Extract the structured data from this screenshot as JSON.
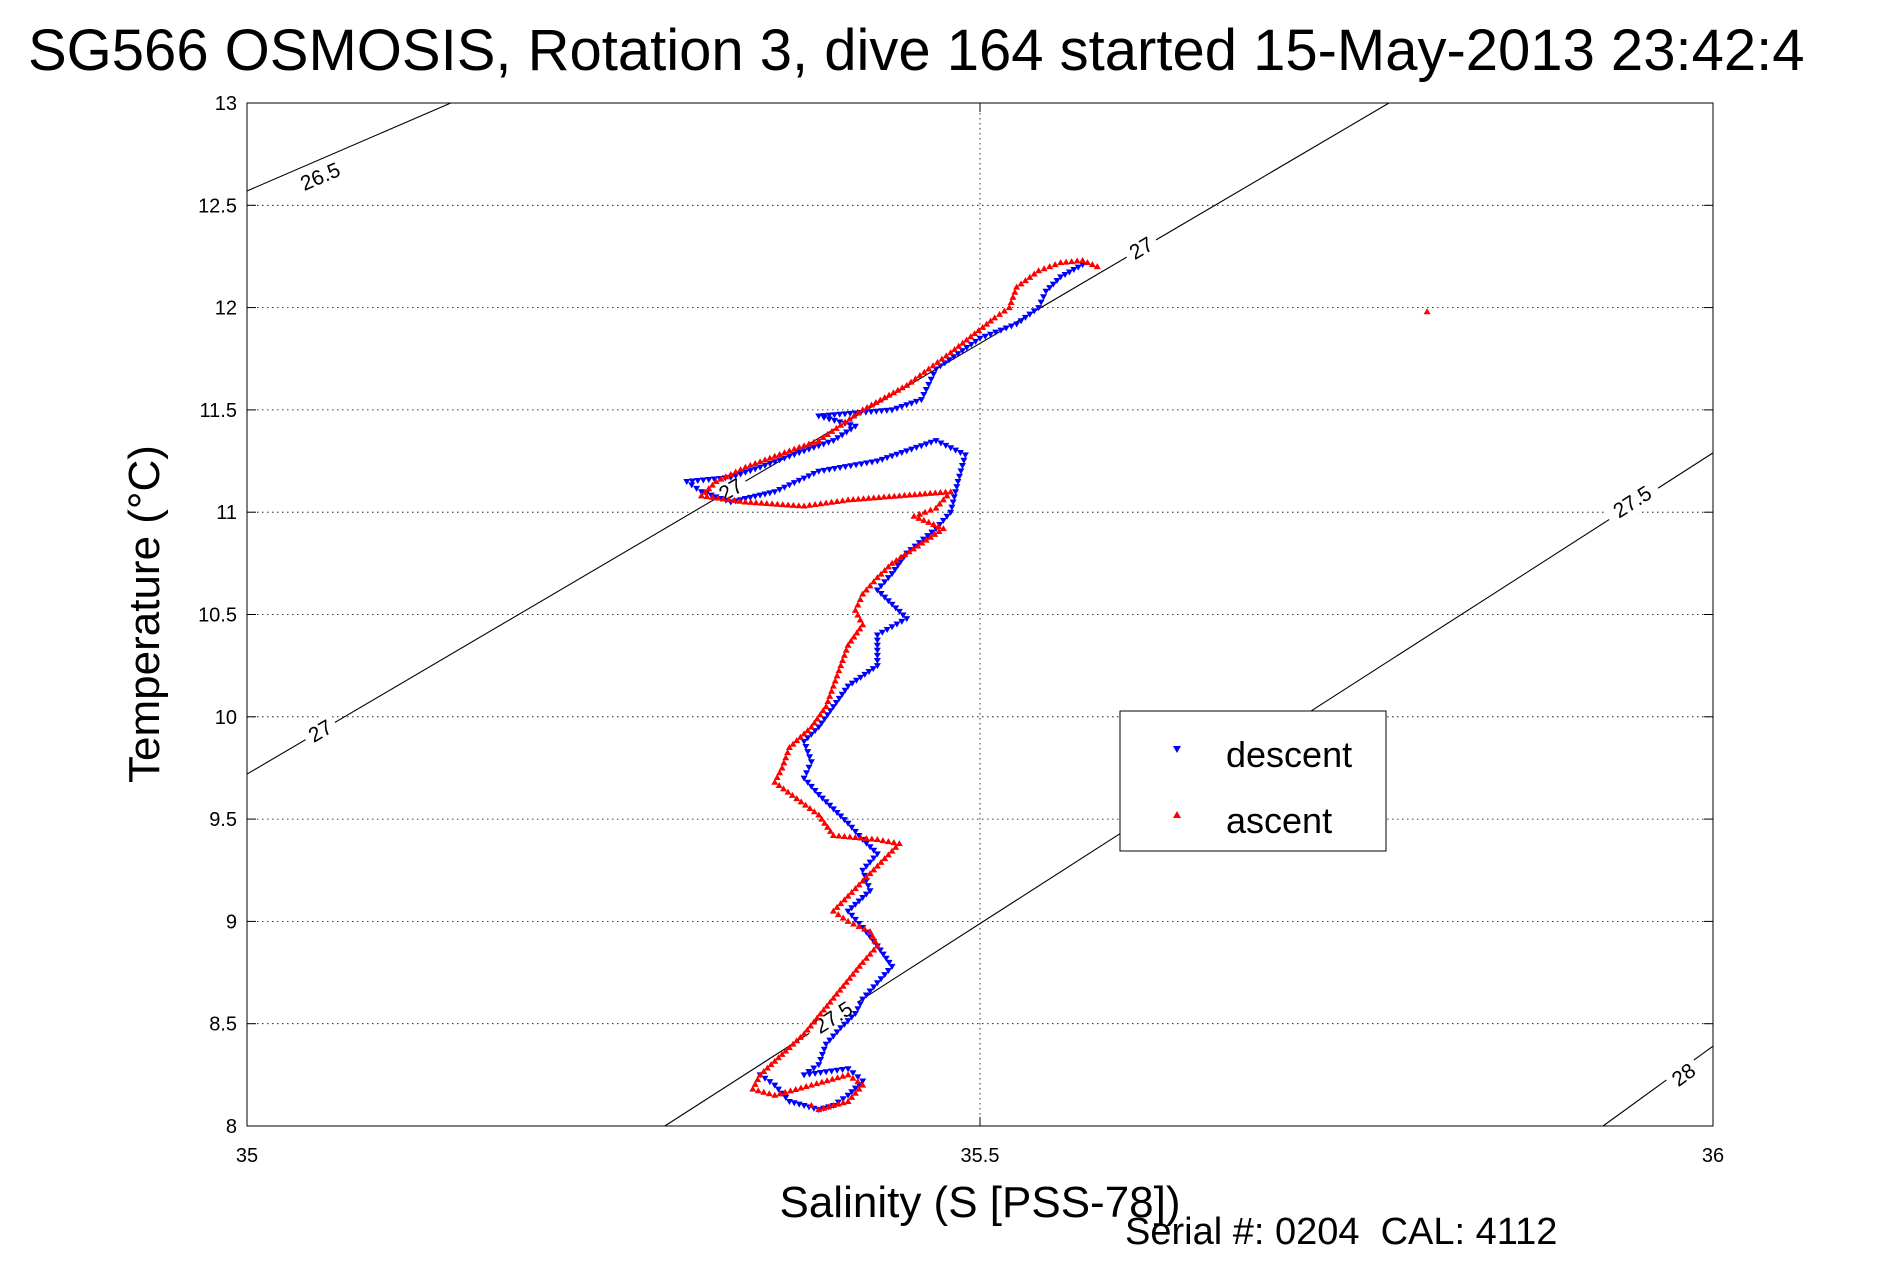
{
  "chart_data": {
    "type": "scatter",
    "title": "SG566 OSMOSIS, Rotation 3, dive 164 started 15-May-2013 23:42:4",
    "xlabel": "Salinity (S [PSS-78])",
    "ylabel": "Temperature (°C)",
    "xlim": [
      35,
      36
    ],
    "ylim": [
      8,
      13
    ],
    "xticks": [
      "35",
      "35.5",
      "36"
    ],
    "yticks": [
      "8",
      "8.5",
      "9",
      "9.5",
      "10",
      "10.5",
      "11",
      "11.5",
      "12",
      "12.5",
      "13"
    ],
    "grid": true,
    "legend_position": "center-right",
    "footer": "Serial #: 0204  CAL: 4112",
    "density_contours": [
      {
        "label": "26.5",
        "points": [
          [
            35.0,
            12.57
          ],
          [
            35.139,
            13.0
          ]
        ],
        "label_at": [
          35.05,
          12.64
        ]
      },
      {
        "label": "27",
        "points": [
          [
            35.0,
            9.72
          ],
          [
            35.779,
            13.0
          ]
        ],
        "label_at": [
          [
            35.05,
            9.93
          ],
          [
            35.33,
            11.11
          ],
          [
            35.61,
            12.29
          ]
        ]
      },
      {
        "label": "27.5",
        "points": [
          [
            35.285,
            8.0
          ],
          [
            36.0,
            11.29
          ]
        ],
        "label_at": [
          [
            35.4,
            8.53
          ],
          [
            35.945,
            11.05
          ]
        ]
      },
      {
        "label": "28",
        "points": [
          [
            35.925,
            8.0
          ],
          [
            36.0,
            8.39
          ]
        ],
        "label_at": [
          35.98,
          8.25
        ]
      }
    ],
    "series": [
      {
        "name": "descent",
        "color": "#0000ff",
        "marker": "triangle-down",
        "points": [
          [
            35.57,
            12.21
          ],
          [
            35.555,
            12.15
          ],
          [
            35.545,
            12.08
          ],
          [
            35.54,
            12.0
          ],
          [
            35.525,
            11.92
          ],
          [
            35.5,
            11.85
          ],
          [
            35.47,
            11.7
          ],
          [
            35.46,
            11.55
          ],
          [
            35.44,
            11.5
          ],
          [
            35.39,
            11.47
          ],
          [
            35.415,
            11.42
          ],
          [
            35.4,
            11.35
          ],
          [
            35.38,
            11.3
          ],
          [
            35.35,
            11.22
          ],
          [
            35.33,
            11.17
          ],
          [
            35.3,
            11.15
          ],
          [
            35.31,
            11.1
          ],
          [
            35.33,
            11.05
          ],
          [
            35.36,
            11.1
          ],
          [
            35.39,
            11.2
          ],
          [
            35.43,
            11.25
          ],
          [
            35.47,
            11.35
          ],
          [
            35.49,
            11.28
          ],
          [
            35.485,
            11.15
          ],
          [
            35.48,
            11.0
          ],
          [
            35.47,
            10.92
          ],
          [
            35.45,
            10.8
          ],
          [
            35.44,
            10.7
          ],
          [
            35.43,
            10.62
          ],
          [
            35.44,
            10.55
          ],
          [
            35.45,
            10.48
          ],
          [
            35.43,
            10.4
          ],
          [
            35.43,
            10.25
          ],
          [
            35.41,
            10.15
          ],
          [
            35.4,
            10.05
          ],
          [
            35.39,
            9.95
          ],
          [
            35.38,
            9.88
          ],
          [
            35.385,
            9.78
          ],
          [
            35.38,
            9.7
          ],
          [
            35.39,
            9.62
          ],
          [
            35.4,
            9.55
          ],
          [
            35.41,
            9.48
          ],
          [
            35.42,
            9.4
          ],
          [
            35.43,
            9.33
          ],
          [
            35.42,
            9.25
          ],
          [
            35.425,
            9.15
          ],
          [
            35.41,
            9.05
          ],
          [
            35.42,
            8.97
          ],
          [
            35.43,
            8.88
          ],
          [
            35.44,
            8.78
          ],
          [
            35.43,
            8.7
          ],
          [
            35.42,
            8.62
          ],
          [
            35.415,
            8.55
          ],
          [
            35.405,
            8.48
          ],
          [
            35.395,
            8.4
          ],
          [
            35.39,
            8.3
          ],
          [
            35.38,
            8.25
          ],
          [
            35.41,
            8.28
          ],
          [
            35.42,
            8.22
          ],
          [
            35.41,
            8.15
          ],
          [
            35.4,
            8.1
          ],
          [
            35.39,
            8.08
          ],
          [
            35.37,
            8.12
          ],
          [
            35.36,
            8.2
          ],
          [
            35.35,
            8.25
          ]
        ]
      },
      {
        "name": "ascent",
        "color": "#ff0000",
        "marker": "triangle-up",
        "points": [
          [
            35.58,
            12.2
          ],
          [
            35.57,
            12.23
          ],
          [
            35.555,
            12.22
          ],
          [
            35.54,
            12.18
          ],
          [
            35.525,
            12.1
          ],
          [
            35.52,
            12.0
          ],
          [
            35.51,
            11.95
          ],
          [
            35.48,
            11.78
          ],
          [
            35.45,
            11.62
          ],
          [
            35.42,
            11.5
          ],
          [
            35.39,
            11.35
          ],
          [
            35.37,
            11.3
          ],
          [
            35.34,
            11.22
          ],
          [
            35.32,
            11.15
          ],
          [
            35.31,
            11.08
          ],
          [
            35.34,
            11.05
          ],
          [
            35.38,
            11.03
          ],
          [
            35.41,
            11.06
          ],
          [
            35.445,
            11.08
          ],
          [
            35.48,
            11.1
          ],
          [
            35.47,
            11.02
          ],
          [
            35.455,
            10.98
          ],
          [
            35.475,
            10.92
          ],
          [
            35.44,
            10.75
          ],
          [
            35.43,
            10.68
          ],
          [
            35.42,
            10.6
          ],
          [
            35.415,
            10.52
          ],
          [
            35.42,
            10.45
          ],
          [
            35.41,
            10.35
          ],
          [
            35.405,
            10.25
          ],
          [
            35.4,
            10.15
          ],
          [
            35.395,
            10.05
          ],
          [
            35.385,
            9.95
          ],
          [
            35.37,
            9.85
          ],
          [
            35.365,
            9.75
          ],
          [
            35.36,
            9.68
          ],
          [
            35.375,
            9.6
          ],
          [
            35.39,
            9.52
          ],
          [
            35.4,
            9.42
          ],
          [
            35.43,
            9.4
          ],
          [
            35.445,
            9.38
          ],
          [
            35.4,
            9.05
          ],
          [
            35.41,
            9.0
          ],
          [
            35.425,
            8.95
          ],
          [
            35.43,
            8.88
          ],
          [
            35.42,
            8.8
          ],
          [
            35.38,
            8.45
          ],
          [
            35.365,
            8.35
          ],
          [
            35.35,
            8.25
          ],
          [
            35.345,
            8.18
          ],
          [
            35.36,
            8.15
          ],
          [
            35.385,
            8.2
          ],
          [
            35.41,
            8.25
          ],
          [
            35.42,
            8.2
          ],
          [
            35.41,
            8.12
          ],
          [
            35.39,
            8.08
          ],
          [
            35.385,
            8.1
          ],
          [
            35.805,
            11.98
          ]
        ]
      }
    ]
  }
}
